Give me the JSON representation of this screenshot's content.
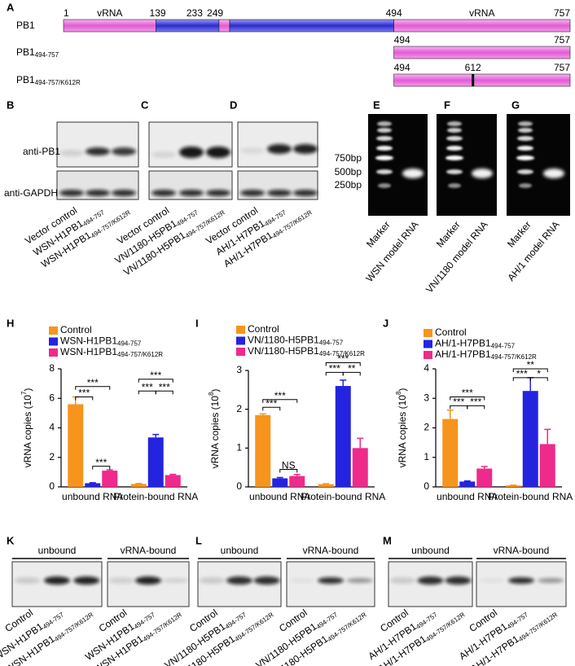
{
  "diagram": {
    "label": "A",
    "rows": [
      {
        "name": "PB1",
        "positions": [
          1,
          139,
          233,
          249,
          494,
          757
        ],
        "region_labels": [
          "vRNA",
          "vRNA"
        ]
      },
      {
        "name": "PB1",
        "sub": "494-757",
        "positions": [
          494,
          757
        ]
      },
      {
        "name": "PB1",
        "sub": "494-757/K612R",
        "positions": [
          494,
          612,
          757
        ]
      }
    ]
  },
  "blots": [
    {
      "label": "B",
      "rows": [
        "anti-PB1",
        "anti-GAPDH"
      ],
      "lanes": [
        {
          "text": "Vector control"
        },
        {
          "text": "WSN-H1PB1",
          "sub": "494-757"
        },
        {
          "text": "WSN-H1PB1",
          "sub": "494-757/K612R"
        }
      ]
    },
    {
      "label": "C",
      "lanes": [
        {
          "text": "Vector control"
        },
        {
          "text": "VN/1180-H5PB1",
          "sub": "494-757"
        },
        {
          "text": "VN/1180-H5PB1",
          "sub": "494-757/K612R"
        }
      ]
    },
    {
      "label": "D",
      "lanes": [
        {
          "text": "Vector control"
        },
        {
          "text": "AH/1-H7PB1",
          "sub": "494-757"
        },
        {
          "text": "AH/1-H7PB1",
          "sub": "494-757/K612R"
        }
      ]
    }
  ],
  "gels": [
    {
      "label": "E",
      "ladder": [
        "750bp",
        "500bp",
        "250bp"
      ],
      "lanes": [
        "Marker",
        "WSN model RNA"
      ]
    },
    {
      "label": "F",
      "lanes": [
        "Marker",
        "VN/1180 model RNA"
      ]
    },
    {
      "label": "G",
      "lanes": [
        "Marker",
        "AH/1 model RNA"
      ]
    }
  ],
  "chart_data": [
    {
      "type": "bar",
      "panel": "H",
      "ylabel": {
        "text": "vRNA copies (10",
        "sup": "7",
        "end": ")"
      },
      "categories": [
        "unbound RNA",
        "Protein-bound RNA"
      ],
      "series": [
        {
          "name": "Control",
          "color": "#f7941d",
          "values": [
            5.6,
            0.2
          ],
          "errors": [
            0.5,
            0.03
          ]
        },
        {
          "name": "WSN-H1PB1",
          "name_sub": "494-757",
          "color": "#2424e0",
          "values": [
            0.25,
            3.35
          ],
          "errors": [
            0.03,
            0.2
          ]
        },
        {
          "name": "WSN-H1PB1",
          "name_sub": "494-757/K612R",
          "color": "#ee2a8a",
          "values": [
            1.1,
            0.8
          ],
          "errors": [
            0.05,
            0.05
          ]
        }
      ],
      "ylim": [
        0,
        8
      ],
      "yticks": [
        0,
        2,
        4,
        6,
        8
      ],
      "significance": [
        "***",
        "***",
        "***",
        "***",
        "***",
        "***"
      ]
    },
    {
      "type": "bar",
      "panel": "I",
      "ylabel": {
        "text": "vRNA copies (10",
        "sup": "8",
        "end": ")"
      },
      "categories": [
        "unbound RNA",
        "Protein-bound RNA"
      ],
      "series": [
        {
          "name": "Control",
          "color": "#f7941d",
          "values": [
            1.85,
            0.07
          ],
          "errors": [
            0.03,
            0.01
          ]
        },
        {
          "name": "VN/1180-H5PB1",
          "name_sub": "494-757",
          "color": "#2424e0",
          "values": [
            0.22,
            2.6
          ],
          "errors": [
            0.02,
            0.15
          ]
        },
        {
          "name": "VN/1180-H5PB1",
          "name_sub": "494-757/K612R",
          "color": "#ee2a8a",
          "values": [
            0.28,
            1.0
          ],
          "errors": [
            0.04,
            0.25
          ]
        }
      ],
      "ylim": [
        0,
        3
      ],
      "yticks": [
        0,
        1,
        2,
        3
      ],
      "significance": [
        "***",
        "***",
        "NS",
        "***",
        "***",
        "**"
      ]
    },
    {
      "type": "bar",
      "panel": "J",
      "ylabel": {
        "text": "vRNA copies (10",
        "sup": "8",
        "end": ")"
      },
      "categories": [
        "unbound RNA",
        "Protein-bound RNA"
      ],
      "series": [
        {
          "name": "Control",
          "color": "#f7941d",
          "values": [
            2.3,
            0.05
          ],
          "errors": [
            0.3,
            0.01
          ]
        },
        {
          "name": "AH/1-H7PB1",
          "name_sub": "494-757",
          "color": "#2424e0",
          "values": [
            0.18,
            3.25
          ],
          "errors": [
            0.02,
            0.45
          ]
        },
        {
          "name": "AH/1-H7PB1",
          "name_sub": "494-757/K612R",
          "color": "#ee2a8a",
          "values": [
            0.62,
            1.45
          ],
          "errors": [
            0.07,
            0.5
          ]
        }
      ],
      "ylim": [
        0,
        4
      ],
      "yticks": [
        0,
        1,
        2,
        3,
        4
      ],
      "significance": [
        "***",
        "***",
        "***",
        "**",
        "***",
        "*"
      ]
    }
  ],
  "pulldowns": [
    {
      "label": "K",
      "groups": [
        {
          "name": "unbound",
          "lanes": [
            {
              "text": "Control"
            },
            {
              "text": "WSN-H1PB1",
              "sub": "494-757"
            },
            {
              "text": "WSN-H1PB1",
              "sub": "494-757/K612R"
            }
          ]
        },
        {
          "name": "vRNA-bound",
          "lanes": [
            {
              "text": "Control"
            },
            {
              "text": "WSN-H1PB1",
              "sub": "494-757"
            },
            {
              "text": "WSN-H1PB1",
              "sub": "494-757/K612R"
            }
          ]
        }
      ]
    },
    {
      "label": "L",
      "groups": [
        {
          "name": "unbound",
          "lanes": [
            {
              "text": "Control"
            },
            {
              "text": "VN/1180-H5PB1",
              "sub": "494-757"
            },
            {
              "text": "VN/1180-H5PB1",
              "sub": "494-757/K612R"
            }
          ]
        },
        {
          "name": "vRNA-bound",
          "lanes": [
            {
              "text": "Control"
            },
            {
              "text": "VN/1180-H5PB1",
              "sub": "494-757"
            },
            {
              "text": "VN/1180-H5PB1",
              "sub": "494-757/K612R"
            }
          ]
        }
      ]
    },
    {
      "label": "M",
      "groups": [
        {
          "name": "unbound",
          "lanes": [
            {
              "text": "Control"
            },
            {
              "text": "AH/1-H7PB1",
              "sub": "494-757"
            },
            {
              "text": "AH/1-H7PB1",
              "sub": "494-757/K612R"
            }
          ]
        },
        {
          "name": "vRNA-bound",
          "lanes": [
            {
              "text": "Control"
            },
            {
              "text": "AH/1-H7PB1",
              "sub": "494-757"
            },
            {
              "text": "AH/1-H7PB1",
              "sub": "494-757/K612R"
            }
          ]
        }
      ]
    }
  ]
}
